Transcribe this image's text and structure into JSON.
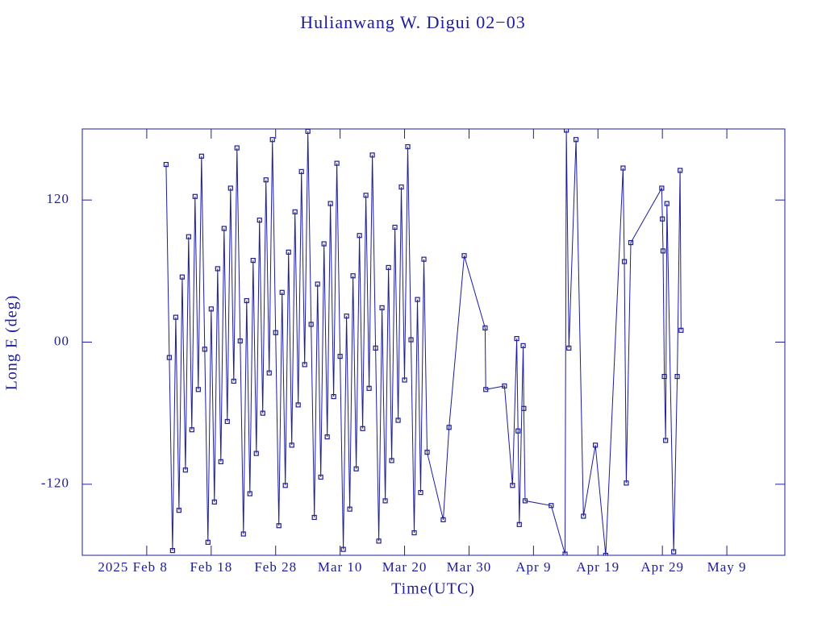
{
  "chart_data": {
    "type": "line",
    "title": "Hulianwang W. Digui 02−03",
    "x_label": "Time(UTC)",
    "y_label": "Long E (deg)",
    "color": "#1c1c9c",
    "xlim": [
      29,
      138
    ],
    "ylim": [
      -180,
      180
    ],
    "xticks": [
      {
        "value": 39,
        "label": "2025 Feb  8"
      },
      {
        "value": 49,
        "label": "Feb 18"
      },
      {
        "value": 59,
        "label": "Feb 28"
      },
      {
        "value": 69,
        "label": "Mar 10"
      },
      {
        "value": 79,
        "label": "Mar 20"
      },
      {
        "value": 89,
        "label": "Mar 30"
      },
      {
        "value": 99,
        "label": "Apr  9"
      },
      {
        "value": 109,
        "label": "Apr 19"
      },
      {
        "value": 119,
        "label": "Apr 29"
      },
      {
        "value": 129,
        "label": "May  9"
      }
    ],
    "yticks": [
      120,
      {
        "value": 0,
        "label": "00"
      },
      -120
    ],
    "x": [
      42,
      42.5,
      43,
      43.5,
      44,
      44.5,
      45,
      45.5,
      46,
      46.5,
      47,
      47.5,
      48,
      48.5,
      49,
      49.5,
      50,
      50.5,
      51,
      51.5,
      52,
      52.5,
      53,
      53.5,
      54,
      54.5,
      55,
      55.5,
      56,
      56.5,
      57,
      57.5,
      58,
      58.5,
      59,
      59.5,
      60,
      60.5,
      61,
      61.5,
      62,
      62.5,
      63,
      63.5,
      64,
      64.5,
      65,
      65.5,
      66,
      66.5,
      67,
      67.5,
      68,
      68.5,
      69,
      69.5,
      70,
      70.5,
      71,
      71.5,
      72,
      72.5,
      73,
      73.5,
      74,
      74.5,
      75,
      75.5,
      76,
      76.5,
      77,
      77.5,
      78,
      78.5,
      79,
      79.5,
      80,
      80.5,
      81,
      81.5,
      82,
      82.5,
      85,
      85.9,
      88.25,
      91.5,
      91.6,
      94.5,
      95.75,
      96.4,
      96.6,
      96.8,
      97.4,
      97.5,
      97.7,
      101.75,
      103.9,
      104.1,
      104.5,
      105.6,
      106.75,
      108.6,
      110.2,
      112.9,
      113.1,
      113.4,
      114.1,
      118.9,
      119,
      119.1,
      119.3,
      119.5,
      119.7,
      120.75,
      121.3,
      121.75,
      121.9
    ],
    "values": [
      150,
      -13,
      -176,
      21,
      -142,
      55,
      -108,
      89,
      -74,
      123,
      -40,
      157,
      -6,
      -169,
      28,
      -135,
      62,
      -101,
      96,
      -67,
      130,
      -33,
      164,
      1,
      -162,
      35,
      -128,
      69,
      -94,
      103,
      -60,
      137,
      -26,
      171,
      8,
      -155,
      42,
      -121,
      76,
      -87,
      110,
      -53,
      144,
      -19,
      178,
      15,
      -148,
      49,
      -114,
      83,
      -80,
      117,
      -46,
      151,
      -12,
      -175,
      22,
      -141,
      56,
      -107,
      90,
      -73,
      124,
      -39,
      158,
      -5,
      -168,
      29,
      -134,
      63,
      -100,
      97,
      -66,
      131,
      -32,
      165,
      2,
      -161,
      36,
      -127,
      70,
      -93,
      -150,
      -72,
      73,
      12,
      -40,
      -37,
      -121,
      3,
      -75,
      -154,
      -3,
      -56,
      -134,
      -138,
      -179,
      179,
      -5,
      171,
      -147,
      -87,
      -180,
      147,
      68,
      -119,
      84,
      130,
      104,
      77,
      -29,
      -83,
      117,
      -177,
      -29,
      145,
      10
    ]
  }
}
